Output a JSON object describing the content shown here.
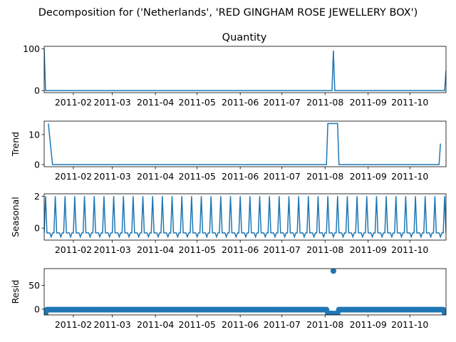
{
  "figure": {
    "suptitle": "Decomposition for ('Netherlands', 'RED GINGHAM ROSE JEWELLERY BOX')"
  },
  "colors": {
    "line": "#1f77b4",
    "axis": "#000000",
    "background": "#ffffff"
  },
  "chart_data": [
    {
      "type": "line",
      "title": "Quantity",
      "ylabel": "",
      "xlim": [
        "2011-01-11",
        "2011-10-27"
      ],
      "ylim": [
        -5,
        106
      ],
      "yticks": [
        0,
        100
      ],
      "xticklabels": [
        "2011-02",
        "2011-03",
        "2011-04",
        "2011-05",
        "2011-06",
        "2011-07",
        "2011-08",
        "2011-09",
        "2011-10"
      ],
      "grid": false,
      "x": [
        "2011-01-11",
        "2011-01-12",
        "2011-08-06",
        "2011-08-07",
        "2011-08-08",
        "2011-10-26",
        "2011-10-27"
      ],
      "values": [
        100,
        0,
        0,
        96,
        0,
        0,
        48
      ]
    },
    {
      "type": "line",
      "title": "",
      "ylabel": "Trend",
      "xlim": [
        "2011-01-11",
        "2011-10-27"
      ],
      "ylim": [
        -0.7,
        14.5
      ],
      "yticks": [
        0,
        10
      ],
      "xticklabels": [
        "2011-02",
        "2011-03",
        "2011-04",
        "2011-05",
        "2011-06",
        "2011-07",
        "2011-08",
        "2011-09",
        "2011-10"
      ],
      "grid": false,
      "x": [
        "2011-01-14",
        "2011-01-17",
        "2011-08-02",
        "2011-08-03",
        "2011-08-10",
        "2011-08-11",
        "2011-10-22",
        "2011-10-23"
      ],
      "values": [
        13.7,
        0,
        0,
        13.7,
        13.7,
        0,
        0,
        7
      ]
    },
    {
      "type": "line",
      "title": "",
      "ylabel": "Seasonal",
      "xlim": [
        "2011-01-11",
        "2011-10-27"
      ],
      "ylim": [
        -0.75,
        2.15
      ],
      "yticks": [
        0,
        2
      ],
      "xticklabels": [
        "2011-02",
        "2011-03",
        "2011-04",
        "2011-05",
        "2011-06",
        "2011-07",
        "2011-08",
        "2011-09",
        "2011-10"
      ],
      "grid": false,
      "period_days": 7,
      "pattern": [
        -0.3,
        2.0,
        -0.3,
        -0.3,
        -0.3,
        -0.55,
        -0.3
      ],
      "start": "2011-01-11",
      "end": "2011-10-27"
    },
    {
      "type": "scatter",
      "title": "",
      "ylabel": "Resid",
      "xlim": [
        "2011-01-11",
        "2011-10-27"
      ],
      "ylim": [
        -12,
        85
      ],
      "yticks": [
        0,
        50
      ],
      "xticklabels": [
        "2011-02",
        "2011-03",
        "2011-04",
        "2011-05",
        "2011-06",
        "2011-07",
        "2011-08",
        "2011-09",
        "2011-10"
      ],
      "grid": false,
      "baseline": -1,
      "start": "2011-01-11",
      "end": "2011-10-27",
      "outliers": [
        {
          "x": "2011-01-11",
          "y": -9
        },
        {
          "x": "2011-01-12",
          "y": -9
        },
        {
          "x": "2011-08-03",
          "y": -9
        },
        {
          "x": "2011-08-04",
          "y": -9
        },
        {
          "x": "2011-08-05",
          "y": -9
        },
        {
          "x": "2011-08-06",
          "y": -9
        },
        {
          "x": "2011-08-07",
          "y": 80
        },
        {
          "x": "2011-08-08",
          "y": -9
        },
        {
          "x": "2011-08-09",
          "y": -9
        },
        {
          "x": "2011-08-10",
          "y": -9
        },
        {
          "x": "2011-10-26",
          "y": -9
        },
        {
          "x": "2011-10-27",
          "y": -9
        }
      ]
    }
  ]
}
